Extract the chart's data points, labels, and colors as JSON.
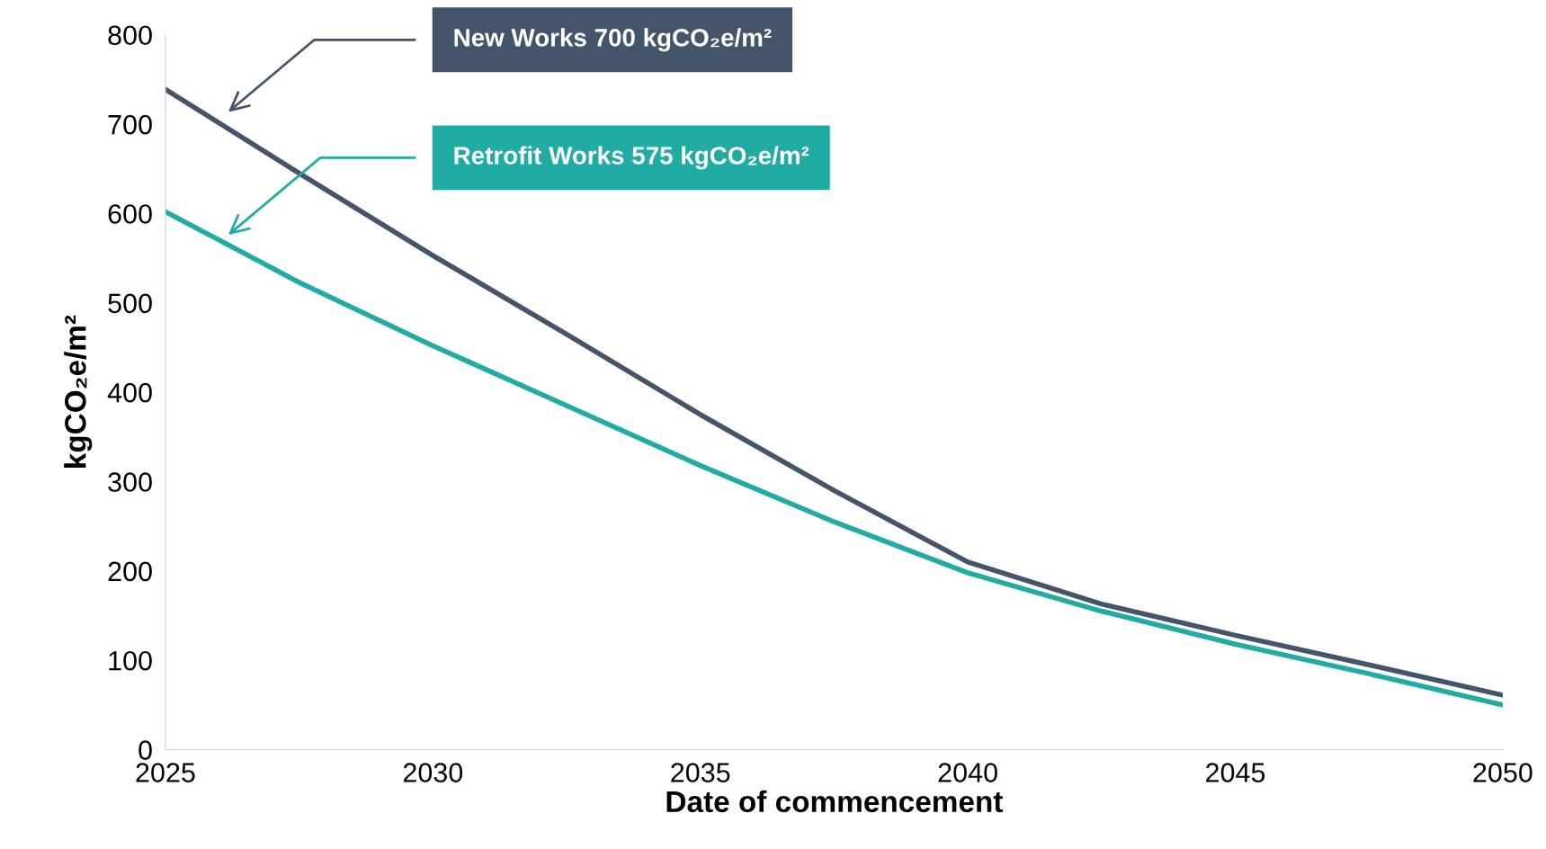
{
  "chart_data": {
    "type": "line",
    "xlabel": "Date of commencement",
    "ylabel": "kgCO₂e/m²",
    "xlim": [
      2025,
      2050
    ],
    "xticks": [
      2025,
      2030,
      2035,
      2040,
      2045,
      2050
    ],
    "ylim": [
      0,
      800
    ],
    "yticks": [
      0,
      100,
      200,
      300,
      400,
      500,
      600,
      700,
      800
    ],
    "grid": false,
    "legend": false,
    "marker": "none",
    "line_style": "solid",
    "x": [
      2025,
      2027.5,
      2030,
      2032.5,
      2035,
      2037.5,
      2040,
      2042.5,
      2045,
      2047.5,
      2050
    ],
    "series": [
      {
        "color": "#44546a",
        "values": [
          739,
          645,
          553,
          465,
          375,
          290,
          210,
          163,
          128,
          95,
          61
        ]
      },
      {
        "color": "#20aca4",
        "values": [
          602,
          523,
          452,
          385,
          318,
          255,
          198,
          155,
          118,
          85,
          50
        ]
      }
    ],
    "annotations": [
      "New Works 700 kgCO₂e/m²",
      "Retrofit Works 575 kgCO₂e/m²"
    ]
  }
}
